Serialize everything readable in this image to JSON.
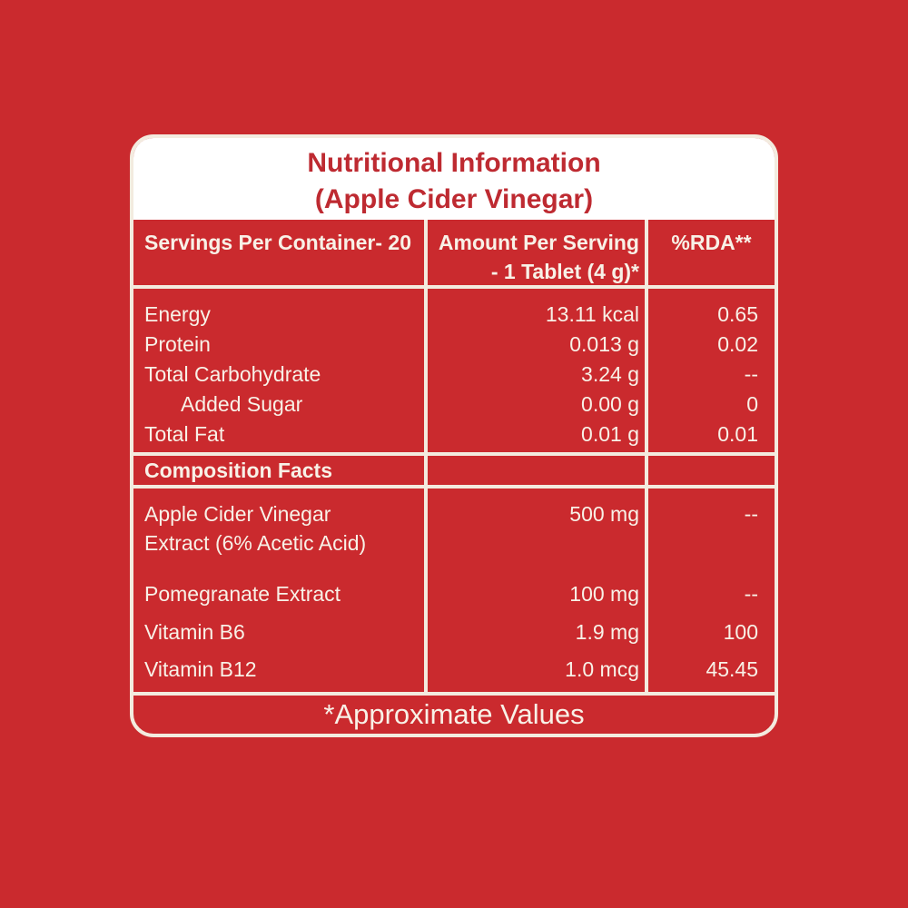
{
  "colors": {
    "background_red": "#CA2A2E",
    "title_text_red": "#BE2A31",
    "title_background": "#FFFFFF",
    "grid_line_cream": "#F3EBDF",
    "table_text_cream": "#F8F1E7"
  },
  "title": {
    "line1": "Nutritional Information",
    "line2": "(Apple Cider Vinegar)"
  },
  "header": {
    "servings": "Servings Per Container- 20",
    "amount_line1": "Amount Per Serving",
    "amount_line2": "- 1 Tablet (4 g)*",
    "rda": "%RDA**"
  },
  "nutrients": [
    {
      "name": "Energy",
      "amount": "13.11 kcal",
      "rda": "0.65"
    },
    {
      "name": "Protein",
      "amount": "0.013 g",
      "rda": "0.02"
    },
    {
      "name": "Total Carbohydrate",
      "amount": "3.24 g",
      "rda": "--"
    },
    {
      "name": "Added Sugar",
      "amount": "0.00 g",
      "rda": "0"
    },
    {
      "name": "Total Fat",
      "amount": "0.01 g",
      "rda": "0.01"
    }
  ],
  "section_header": "Composition Facts",
  "composition": [
    {
      "name": "Apple Cider Vinegar Extract (6% Acetic Acid)",
      "amount": "500 mg",
      "rda": "--"
    },
    {
      "name": "Pomegranate Extract",
      "amount": "100 mg",
      "rda": "--"
    },
    {
      "name": "Vitamin B6",
      "amount": "1.9 mg",
      "rda": "100"
    },
    {
      "name": "Vitamin B12",
      "amount": "1.0 mcg",
      "rda": "45.45"
    }
  ],
  "footer": "*Approximate Values"
}
